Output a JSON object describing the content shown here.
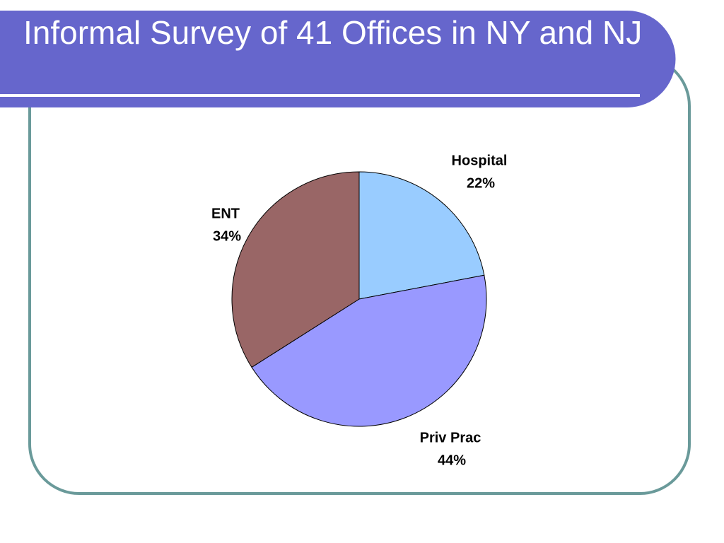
{
  "chart_data": {
    "type": "pie",
    "title": "Informal Survey of 41 Offices in NY and NJ",
    "categories": [
      "Hospital",
      "Priv Prac",
      "ENT"
    ],
    "values": [
      22,
      44,
      34
    ],
    "value_labels": [
      "22%",
      "44%",
      "34%"
    ],
    "colors": [
      "#99ccff",
      "#9999ff",
      "#996666"
    ]
  }
}
